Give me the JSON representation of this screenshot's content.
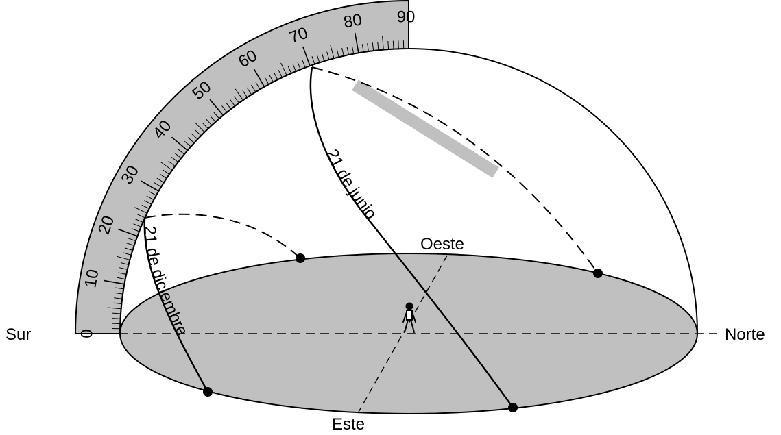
{
  "compass": {
    "south": "Sur",
    "north": "Norte",
    "west": "Oeste",
    "east": "Este"
  },
  "protractor": {
    "tick_labels": [
      "0",
      "10",
      "20",
      "30",
      "40",
      "50",
      "60",
      "70",
      "80",
      "90"
    ],
    "fill_color": "#c0c0c0"
  },
  "paths": {
    "december": "21 de diciembre",
    "june": "21 de junio"
  },
  "colors": {
    "ground": "#c0c0c0",
    "highlight": "#c0c0c0",
    "ink": "#000000"
  },
  "icons": {
    "observer": "standing-person-icon"
  }
}
